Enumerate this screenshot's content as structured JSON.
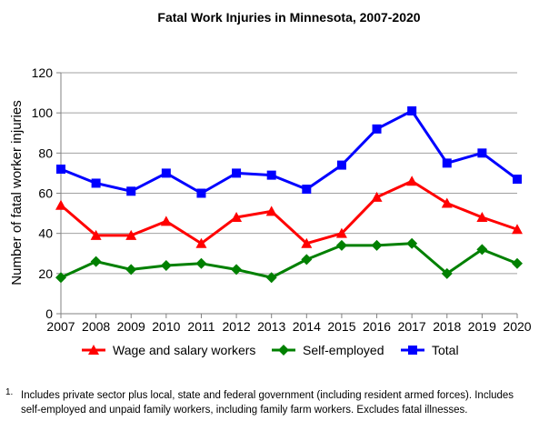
{
  "chart_data": {
    "type": "line",
    "title": "Fatal Work Injuries in Minnesota, 2007-2020",
    "xlabel": "",
    "ylabel": "Number of fatal worker injuries",
    "x": [
      "2007",
      "2008",
      "2009",
      "2010",
      "2011",
      "2012",
      "2013",
      "2014",
      "2015",
      "2016",
      "2017",
      "2018",
      "2019",
      "2020"
    ],
    "ylim": [
      0,
      120
    ],
    "yticks": [
      "0",
      "20",
      "40",
      "60",
      "80",
      "100",
      "120"
    ],
    "grid": true,
    "legend_position": "bottom",
    "series": [
      {
        "name": "Wage and salary workers",
        "color": "#ff0000",
        "marker": "triangle",
        "values": [
          54,
          39,
          39,
          46,
          35,
          48,
          51,
          35,
          40,
          58,
          66,
          55,
          48,
          42
        ]
      },
      {
        "name": "Self-employed",
        "color": "#008000",
        "marker": "diamond",
        "values": [
          18,
          26,
          22,
          24,
          25,
          22,
          18,
          27,
          34,
          34,
          35,
          20,
          32,
          25
        ]
      },
      {
        "name": "Total",
        "color": "#0000ff",
        "marker": "square",
        "values": [
          72,
          65,
          61,
          70,
          60,
          70,
          69,
          62,
          74,
          92,
          101,
          75,
          80,
          67
        ]
      }
    ]
  },
  "footnote": {
    "mark": "1.",
    "text": "Includes private sector plus local, state and federal government (including resident armed forces). Includes self-employed and unpaid family workers, including family farm workers. Excludes fatal illnesses."
  }
}
